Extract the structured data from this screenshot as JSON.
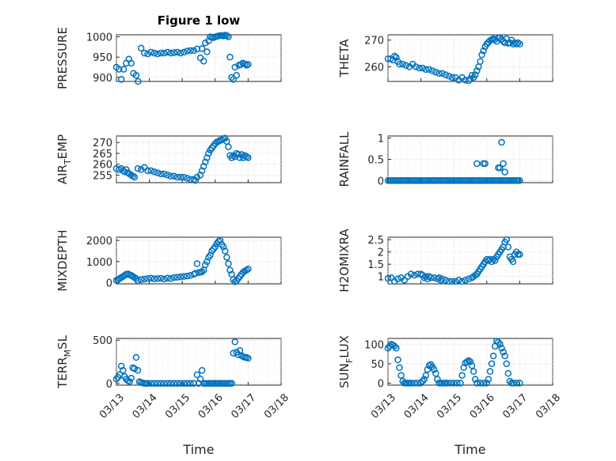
{
  "figure": {
    "title": "Figure 1 low",
    "xlabel": "Time",
    "marker_color": "#0072BD",
    "x_ticks": [
      "03/13",
      "03/14",
      "03/15",
      "03/16",
      "03/17",
      "03/18"
    ]
  },
  "chart_data": [
    {
      "type": "scatter",
      "ylabel": "PRESSURE",
      "ylabel_sub": "",
      "ylim": [
        890,
        1005
      ],
      "yticks": [
        900,
        950,
        1000
      ],
      "x": [
        0.0,
        0.08,
        0.15,
        0.22,
        0.3,
        0.38,
        0.45,
        0.52,
        0.6,
        0.66,
        0.75,
        0.85,
        0.95,
        1.05,
        1.15,
        1.25,
        1.35,
        1.45,
        1.55,
        1.65,
        1.75,
        1.85,
        1.95,
        2.05,
        2.15,
        2.25,
        2.35,
        2.45,
        2.55,
        2.6,
        2.65,
        2.7,
        2.75,
        2.8,
        2.85,
        2.9,
        2.95,
        3.0,
        3.05,
        3.1,
        3.15,
        3.2,
        3.25,
        3.3,
        3.35,
        3.4,
        3.45,
        3.5,
        3.55,
        3.6,
        3.65,
        3.72,
        3.78,
        3.84,
        3.9,
        3.95,
        4.0
      ],
      "y": [
        925,
        920,
        895,
        920,
        935,
        945,
        935,
        910,
        905,
        890,
        972,
        960,
        958,
        962,
        960,
        958,
        960,
        960,
        962,
        960,
        961,
        962,
        960,
        962,
        965,
        966,
        966,
        970,
        948,
        971,
        940,
        985,
        963,
        990,
        1000,
        999,
        998,
        1000,
        1001,
        1002,
        1003,
        1003,
        1002,
        1004,
        1003,
        1000,
        950,
        900,
        895,
        925,
        905,
        930,
        932,
        935,
        933,
        930,
        932
      ]
    },
    {
      "type": "scatter",
      "ylabel": "THETA",
      "ylabel_sub": "",
      "ylim": [
        254.5,
        272
      ],
      "yticks": [
        260,
        270
      ],
      "x": [
        0.0,
        0.08,
        0.15,
        0.2,
        0.25,
        0.3,
        0.35,
        0.45,
        0.55,
        0.65,
        0.75,
        0.85,
        0.95,
        1.05,
        1.15,
        1.25,
        1.35,
        1.45,
        1.55,
        1.65,
        1.75,
        1.85,
        1.95,
        2.05,
        2.15,
        2.25,
        2.35,
        2.45,
        2.5,
        2.55,
        2.6,
        2.65,
        2.7,
        2.75,
        2.8,
        2.85,
        2.9,
        2.95,
        3.0,
        3.05,
        3.1,
        3.15,
        3.2,
        3.25,
        3.3,
        3.35,
        3.4,
        3.45,
        3.5,
        3.55,
        3.6,
        3.65,
        3.7,
        3.75,
        3.8,
        3.85,
        3.9,
        3.95,
        4.0
      ],
      "y": [
        263,
        263,
        262.5,
        264,
        263.5,
        262,
        261,
        261,
        260.5,
        260,
        261,
        260,
        259.5,
        259.5,
        259,
        259,
        258.5,
        258,
        257.5,
        257.5,
        257,
        256.5,
        256,
        256,
        255,
        256,
        255,
        254.8,
        255.5,
        256.8,
        256,
        257,
        258.5,
        260,
        262,
        264.5,
        266,
        267.5,
        268.5,
        269.2,
        269.8,
        270.2,
        270.5,
        270.2,
        269.5,
        270.8,
        271,
        270.3,
        269.5,
        269,
        270.5,
        268.8,
        269,
        270,
        268.5,
        269,
        268.5,
        269,
        268.5
      ]
    },
    {
      "type": "scatter",
      "ylabel": "AIR",
      "ylabel_sub": "T",
      "ylabel_suffix": "EMP",
      "ylim": [
        251.5,
        273
      ],
      "yticks": [
        255,
        260,
        265,
        270
      ],
      "x": [
        0.0,
        0.08,
        0.15,
        0.2,
        0.25,
        0.3,
        0.35,
        0.4,
        0.45,
        0.5,
        0.55,
        0.65,
        0.75,
        0.85,
        0.95,
        1.05,
        1.15,
        1.25,
        1.35,
        1.45,
        1.55,
        1.65,
        1.75,
        1.85,
        1.95,
        2.05,
        2.15,
        2.25,
        2.35,
        2.4,
        2.45,
        2.55,
        2.6,
        2.65,
        2.7,
        2.75,
        2.8,
        2.85,
        2.9,
        2.95,
        3.0,
        3.05,
        3.1,
        3.15,
        3.2,
        3.25,
        3.3,
        3.35,
        3.4,
        3.45,
        3.5,
        3.55,
        3.6,
        3.65,
        3.7,
        3.75,
        3.8,
        3.85,
        3.9,
        3.95,
        4.0
      ],
      "y": [
        258,
        257.5,
        258,
        257,
        256.5,
        257.5,
        256,
        255.5,
        255,
        254.5,
        254,
        258,
        257.5,
        258.5,
        257,
        257,
        256.5,
        256,
        255.5,
        255.5,
        255,
        254.5,
        254.5,
        254,
        254,
        254,
        253.5,
        253,
        253,
        252.5,
        254,
        255,
        257,
        259,
        261,
        263,
        265,
        266.5,
        267.5,
        268.5,
        269.5,
        270.2,
        270.5,
        271,
        271.2,
        271.8,
        272,
        270.5,
        268,
        264,
        263,
        264,
        263.5,
        265,
        264.5,
        263,
        264.5,
        263,
        264,
        263.5,
        263
      ]
    },
    {
      "type": "scatter",
      "ylabel": "RAINFALL",
      "ylabel_sub": "",
      "ylim": [
        -0.05,
        1.05
      ],
      "yticks": [
        0,
        0.5,
        1
      ],
      "x": [
        0.0,
        0.05,
        0.1,
        0.15,
        0.2,
        0.25,
        0.3,
        0.35,
        0.4,
        0.45,
        0.5,
        0.55,
        0.6,
        0.65,
        0.7,
        0.75,
        0.8,
        0.85,
        0.9,
        0.95,
        1.0,
        1.05,
        1.1,
        1.15,
        1.2,
        1.25,
        1.3,
        1.35,
        1.4,
        1.45,
        1.5,
        1.55,
        1.6,
        1.65,
        1.7,
        1.75,
        1.8,
        1.85,
        1.9,
        1.95,
        2.0,
        2.05,
        2.1,
        2.15,
        2.2,
        2.25,
        2.3,
        2.35,
        2.4,
        2.45,
        2.5,
        2.55,
        2.6,
        2.65,
        2.7,
        2.75,
        2.8,
        2.85,
        2.9,
        2.95,
        3.0,
        3.05,
        3.1,
        3.15,
        3.2,
        3.25,
        3.3,
        3.35,
        3.4,
        3.45,
        3.5,
        3.55,
        3.6,
        3.65,
        3.7,
        3.75,
        3.8,
        3.85,
        3.9,
        3.95,
        4.0,
        2.7,
        2.9,
        2.95,
        3.35,
        3.4,
        3.45,
        3.5,
        3.55
      ],
      "y": [
        0,
        0,
        0,
        0,
        0,
        0,
        0,
        0,
        0,
        0,
        0,
        0,
        0,
        0,
        0,
        0,
        0,
        0,
        0,
        0,
        0,
        0,
        0,
        0,
        0,
        0,
        0,
        0,
        0,
        0,
        0,
        0,
        0,
        0,
        0,
        0,
        0,
        0,
        0,
        0,
        0,
        0,
        0,
        0,
        0,
        0,
        0,
        0,
        0,
        0,
        0,
        0,
        0,
        0,
        0,
        0,
        0,
        0,
        0,
        0,
        0,
        0,
        0,
        0,
        0,
        0,
        0,
        0,
        0,
        0,
        0,
        0,
        0,
        0,
        0,
        0,
        0,
        0,
        0,
        0,
        0,
        0.4,
        0.4,
        0.4,
        0.3,
        0.3,
        0.9,
        0.4,
        0.2
      ]
    },
    {
      "type": "scatter",
      "ylabel": "MIXDEPTH",
      "ylabel_sub": "",
      "ylim": [
        -50,
        2150
      ],
      "yticks": [
        0,
        1000,
        2000
      ],
      "x": [
        0.0,
        0.05,
        0.1,
        0.15,
        0.2,
        0.25,
        0.3,
        0.35,
        0.4,
        0.45,
        0.5,
        0.55,
        0.6,
        0.65,
        0.75,
        0.85,
        0.95,
        1.05,
        1.15,
        1.25,
        1.35,
        1.45,
        1.55,
        1.65,
        1.75,
        1.85,
        1.95,
        2.05,
        2.15,
        2.25,
        2.35,
        2.4,
        2.45,
        2.5,
        2.55,
        2.6,
        2.65,
        2.7,
        2.75,
        2.8,
        2.85,
        2.9,
        2.95,
        3.0,
        3.05,
        3.1,
        3.15,
        3.2,
        3.25,
        3.3,
        3.35,
        3.4,
        3.45,
        3.5,
        3.55,
        3.6,
        3.65,
        3.7,
        3.75,
        3.8,
        3.85,
        3.9,
        3.95,
        4.0
      ],
      "y": [
        120,
        150,
        200,
        250,
        300,
        350,
        400,
        420,
        380,
        350,
        300,
        250,
        200,
        100,
        150,
        180,
        200,
        220,
        190,
        200,
        210,
        180,
        220,
        200,
        250,
        260,
        280,
        300,
        320,
        350,
        400,
        450,
        900,
        480,
        500,
        520,
        600,
        850,
        1000,
        1200,
        1300,
        1500,
        1600,
        1700,
        1850,
        1950,
        2000,
        1800,
        1700,
        1500,
        1200,
        900,
        600,
        400,
        150,
        50,
        100,
        200,
        300,
        400,
        500,
        550,
        600,
        650
      ]
    },
    {
      "type": "scatter",
      "ylabel": "H2OMIXRA",
      "ylabel_sub": "",
      "ylim": [
        0.7,
        2.6
      ],
      "yticks": [
        1,
        1.5,
        2,
        2.5
      ],
      "x": [
        0.0,
        0.1,
        0.2,
        0.3,
        0.4,
        0.5,
        0.6,
        0.7,
        0.8,
        0.9,
        1.0,
        1.05,
        1.1,
        1.15,
        1.2,
        1.25,
        1.3,
        1.4,
        1.5,
        1.55,
        1.6,
        1.65,
        1.75,
        1.85,
        1.95,
        2.05,
        2.15,
        2.25,
        2.35,
        2.45,
        2.55,
        2.6,
        2.65,
        2.7,
        2.75,
        2.8,
        2.85,
        2.9,
        2.95,
        3.0,
        3.05,
        3.1,
        3.15,
        3.2,
        3.25,
        3.3,
        3.35,
        3.4,
        3.45,
        3.5,
        3.55,
        3.6,
        3.65,
        3.7,
        3.75,
        3.8,
        3.85,
        3.9,
        3.95,
        4.0
      ],
      "y": [
        0.92,
        0.95,
        0.8,
        0.9,
        0.95,
        0.85,
        1.0,
        1.1,
        1.05,
        1.1,
        1.1,
        1.05,
        0.95,
        1.0,
        0.9,
        1.0,
        0.95,
        0.95,
        0.9,
        0.95,
        0.85,
        0.9,
        0.85,
        0.8,
        0.8,
        0.8,
        0.85,
        0.8,
        0.85,
        0.9,
        0.95,
        1.0,
        1.05,
        1.1,
        1.2,
        1.3,
        1.4,
        1.5,
        1.6,
        1.7,
        1.65,
        1.7,
        1.6,
        1.7,
        1.65,
        1.8,
        1.9,
        2.0,
        2.1,
        2.2,
        2.4,
        2.5,
        2.2,
        1.8,
        1.7,
        1.6,
        1.9,
        2.0,
        1.9,
        1.9
      ]
    },
    {
      "type": "scatter",
      "ylabel": "TERR",
      "ylabel_sub": "M",
      "ylabel_suffix": "SL",
      "ylim": [
        -20,
        520
      ],
      "yticks": [
        0,
        500
      ],
      "x": [
        0.0,
        0.05,
        0.1,
        0.15,
        0.2,
        0.25,
        0.3,
        0.35,
        0.4,
        0.45,
        0.5,
        0.55,
        0.6,
        0.65,
        0.7,
        0.75,
        0.8,
        0.85,
        0.9,
        0.95,
        1.05,
        1.15,
        1.25,
        1.35,
        1.45,
        1.55,
        1.65,
        1.75,
        1.85,
        1.95,
        2.05,
        2.15,
        2.25,
        2.35,
        2.45,
        2.5,
        2.55,
        2.6,
        2.65,
        2.7,
        2.75,
        2.8,
        2.85,
        2.9,
        2.95,
        3.0,
        3.05,
        3.1,
        3.15,
        3.2,
        3.25,
        3.3,
        3.35,
        3.4,
        3.45,
        3.5,
        3.55,
        3.6,
        3.65,
        3.7,
        3.75,
        3.8,
        3.85,
        3.9,
        3.95,
        4.0
      ],
      "y": [
        50,
        70,
        100,
        200,
        150,
        80,
        50,
        30,
        20,
        60,
        180,
        170,
        300,
        150,
        20,
        10,
        5,
        0,
        0,
        0,
        0,
        0,
        0,
        0,
        0,
        0,
        0,
        0,
        0,
        0,
        0,
        0,
        0,
        0,
        100,
        0,
        50,
        150,
        0,
        0,
        0,
        0,
        0,
        0,
        0,
        0,
        0,
        0,
        0,
        0,
        0,
        0,
        0,
        0,
        0,
        0,
        350,
        480,
        360,
        330,
        380,
        320,
        310,
        300,
        300,
        290
      ]
    },
    {
      "type": "scatter",
      "ylabel": "SUN",
      "ylabel_sub": "F",
      "ylabel_suffix": "LUX",
      "ylim": [
        -5,
        115
      ],
      "yticks": [
        0,
        50,
        100
      ],
      "x": [
        0.0,
        0.05,
        0.1,
        0.15,
        0.2,
        0.25,
        0.3,
        0.35,
        0.4,
        0.45,
        0.5,
        0.55,
        0.6,
        0.65,
        0.7,
        0.8,
        0.9,
        1.0,
        1.05,
        1.1,
        1.15,
        1.2,
        1.25,
        1.3,
        1.35,
        1.4,
        1.45,
        1.5,
        1.55,
        1.6,
        1.65,
        1.7,
        1.75,
        1.8,
        1.9,
        2.0,
        2.1,
        2.2,
        2.25,
        2.3,
        2.35,
        2.4,
        2.45,
        2.5,
        2.55,
        2.6,
        2.65,
        2.7,
        2.8,
        2.9,
        3.0,
        3.05,
        3.1,
        3.15,
        3.2,
        3.25,
        3.3,
        3.35,
        3.4,
        3.45,
        3.5,
        3.55,
        3.6,
        3.65,
        3.7,
        3.75,
        3.8,
        3.9,
        4.0
      ],
      "y": [
        90,
        95,
        100,
        98,
        95,
        90,
        60,
        40,
        20,
        5,
        0,
        0,
        0,
        0,
        0,
        0,
        0,
        0,
        5,
        10,
        20,
        35,
        45,
        48,
        42,
        35,
        25,
        10,
        0,
        0,
        0,
        0,
        0,
        0,
        0,
        0,
        0,
        0,
        20,
        40,
        52,
        55,
        58,
        55,
        45,
        30,
        10,
        0,
        0,
        0,
        0,
        10,
        30,
        50,
        70,
        95,
        108,
        105,
        100,
        90,
        80,
        70,
        50,
        25,
        5,
        0,
        0,
        0,
        0
      ]
    }
  ]
}
